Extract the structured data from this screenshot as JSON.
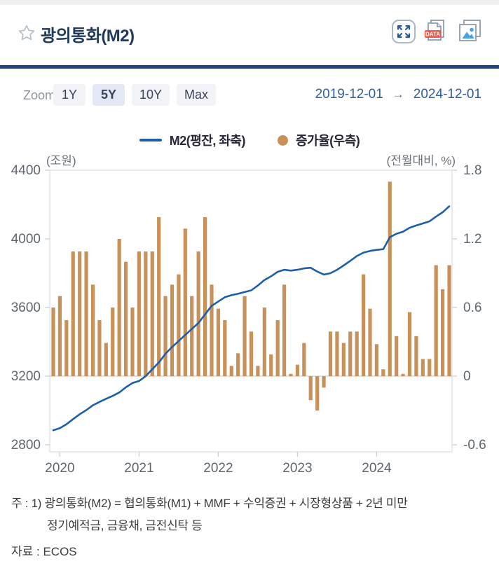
{
  "header": {
    "title": "광의통화(M2)",
    "icons": [
      {
        "name": "fullscreen"
      },
      {
        "name": "data-download",
        "badge": "DATA"
      },
      {
        "name": "image-download"
      }
    ]
  },
  "toolbar": {
    "zoom_label": "Zoom",
    "buttons": [
      {
        "label": "1Y",
        "selected": false
      },
      {
        "label": "5Y",
        "selected": true
      },
      {
        "label": "10Y",
        "selected": false
      },
      {
        "label": "Max",
        "selected": false
      }
    ],
    "date_range": {
      "start": "2019-12-01",
      "arrow": "→",
      "end": "2024-12-01"
    }
  },
  "chart_data": {
    "type": "combo-bar-line",
    "months": [
      "2019-12",
      "2020-01",
      "2020-02",
      "2020-03",
      "2020-04",
      "2020-05",
      "2020-06",
      "2020-07",
      "2020-08",
      "2020-09",
      "2020-10",
      "2020-11",
      "2020-12",
      "2021-01",
      "2021-02",
      "2021-03",
      "2021-04",
      "2021-05",
      "2021-06",
      "2021-07",
      "2021-08",
      "2021-09",
      "2021-10",
      "2021-11",
      "2021-12",
      "2022-01",
      "2022-02",
      "2022-03",
      "2022-04",
      "2022-05",
      "2022-06",
      "2022-07",
      "2022-08",
      "2022-09",
      "2022-10",
      "2022-11",
      "2022-12",
      "2023-01",
      "2023-02",
      "2023-03",
      "2023-04",
      "2023-05",
      "2023-06",
      "2023-07",
      "2023-08",
      "2023-09",
      "2023-10",
      "2023-11",
      "2023-12",
      "2024-01",
      "2024-02",
      "2024-03",
      "2024-04",
      "2024-05",
      "2024-06",
      "2024-07",
      "2024-08",
      "2024-09",
      "2024-10",
      "2024-11",
      "2024-12"
    ],
    "series": [
      {
        "name": "M2(평잔, 좌축)",
        "type": "line",
        "axis": "left",
        "color": "#1e5fa8",
        "values": [
          2885,
          2897,
          2920,
          2950,
          2978,
          3002,
          3030,
          3050,
          3068,
          3085,
          3105,
          3135,
          3160,
          3172,
          3200,
          3240,
          3280,
          3330,
          3370,
          3405,
          3440,
          3475,
          3510,
          3560,
          3610,
          3635,
          3660,
          3672,
          3680,
          3690,
          3700,
          3728,
          3760,
          3782,
          3808,
          3820,
          3815,
          3820,
          3828,
          3832,
          3810,
          3792,
          3800,
          3820,
          3845,
          3872,
          3900,
          3920,
          3930,
          3936,
          3940,
          4010,
          4030,
          4042,
          4065,
          4078,
          4090,
          4102,
          4130,
          4155,
          4190
        ]
      },
      {
        "name": "증가율(우측)",
        "type": "bar",
        "axis": "right",
        "color": "#c9915a",
        "values": [
          0.6,
          0.7,
          0.49,
          1.09,
          1.09,
          1.09,
          0.8,
          0.49,
          0.29,
          0.6,
          1.2,
          1.0,
          0.6,
          1.09,
          1.09,
          1.09,
          1.39,
          0.7,
          0.8,
          0.89,
          1.29,
          0.7,
          1.09,
          1.39,
          0.8,
          0.59,
          0.49,
          0.09,
          0.2,
          0.7,
          0.39,
          0.09,
          0.6,
          0.19,
          0.49,
          0.8,
          0.02,
          0.1,
          0.29,
          -0.21,
          -0.3,
          -0.1,
          0.39,
          0.39,
          0.29,
          0.39,
          0.39,
          0.89,
          0.59,
          0.28,
          0.06,
          1.7,
          0.35,
          0.02,
          0.56,
          0.35,
          0.15,
          0.15,
          0.97,
          0.76,
          0.97
        ]
      }
    ],
    "left_axis": {
      "caption": "(조원)",
      "ticks": [
        4400,
        4000,
        3600,
        3200,
        2800
      ]
    },
    "right_axis": {
      "caption": "(전월대비, %)",
      "ticks": [
        1.8,
        1.2,
        0.6,
        0,
        -0.6
      ]
    },
    "x_axis": {
      "tick_labels": [
        "2020",
        "2021",
        "2022",
        "2023",
        "2024"
      ],
      "tick_month_indices": [
        1,
        13,
        25,
        37,
        49
      ]
    },
    "grid": "ticks-only",
    "legend_position": "top-center"
  },
  "footer": {
    "note_line1": "주 : 1) 광의통화(M2) = 협의통화(M1) + MMF + 수익증권 + 시장형상품 + 2년 미만",
    "note_line2": "정기예적금, 금융채, 금전신탁 등",
    "source": "자료 :  ECOS"
  },
  "theme": {
    "divider": "#17497c",
    "title_color": "#213a5c",
    "date_color": "#2e5fa3",
    "axis_text": "#5f6670",
    "bar_color": "#c9915a",
    "line_color": "#1e5fa8"
  }
}
